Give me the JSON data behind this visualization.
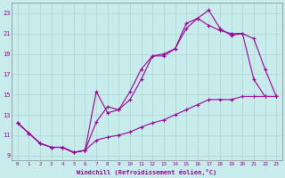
{
  "xlabel": "Windchill (Refroidissement éolien,°C)",
  "bg_color": "#c8ecec",
  "line_color": "#990099",
  "grid_color": "#b0d8d8",
  "xlim": [
    -0.5,
    23.5
  ],
  "ylim": [
    8.5,
    24.0
  ],
  "xticks": [
    0,
    1,
    2,
    3,
    4,
    5,
    6,
    7,
    8,
    9,
    10,
    11,
    12,
    13,
    14,
    15,
    16,
    17,
    18,
    19,
    20,
    21,
    22,
    23
  ],
  "yticks": [
    9,
    11,
    13,
    15,
    17,
    19,
    21,
    23
  ],
  "curve1_x": [
    0,
    1,
    2,
    3,
    4,
    5,
    6,
    7,
    8,
    9,
    10,
    11,
    12,
    13,
    14,
    15,
    16,
    17,
    18,
    19,
    20,
    21,
    22,
    23
  ],
  "curve1_y": [
    12.2,
    11.2,
    10.2,
    9.8,
    9.8,
    9.3,
    9.5,
    15.3,
    13.2,
    13.5,
    14.5,
    16.5,
    18.8,
    18.8,
    19.5,
    21.5,
    22.5,
    23.3,
    21.5,
    20.8,
    21.0,
    20.5,
    17.5,
    14.8
  ],
  "curve2_x": [
    0,
    1,
    2,
    3,
    4,
    5,
    6,
    7,
    8,
    9,
    10,
    11,
    12,
    13,
    14,
    15,
    16,
    17,
    18,
    19,
    20,
    21,
    22,
    23
  ],
  "curve2_y": [
    12.2,
    11.2,
    10.2,
    9.8,
    9.8,
    9.3,
    9.5,
    12.3,
    13.8,
    13.5,
    15.3,
    17.5,
    18.8,
    19.0,
    19.5,
    22.0,
    22.5,
    21.8,
    21.3,
    21.0,
    21.0,
    16.5,
    14.8,
    14.8
  ],
  "curve3_x": [
    0,
    1,
    2,
    3,
    4,
    5,
    6,
    7,
    8,
    9,
    10,
    11,
    12,
    13,
    14,
    15,
    16,
    17,
    18,
    19,
    20,
    21,
    22,
    23
  ],
  "curve3_y": [
    12.2,
    11.2,
    10.2,
    9.8,
    9.8,
    9.3,
    9.5,
    10.5,
    10.8,
    11.0,
    11.3,
    11.8,
    12.2,
    12.5,
    13.0,
    13.5,
    14.0,
    14.5,
    14.5,
    14.5,
    14.8,
    14.8,
    14.8,
    14.8
  ]
}
